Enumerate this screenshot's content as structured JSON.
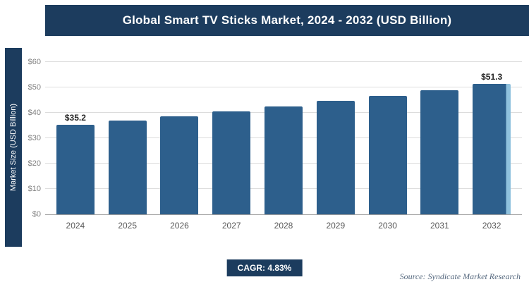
{
  "header": {
    "title": "Global Smart TV Sticks Market, 2024 - 2032 (USD Billion)"
  },
  "chart_data": {
    "type": "bar",
    "title": "Global Smart TV Sticks Market, 2024 - 2032 (USD Billion)",
    "ylabel": "Market Size (USD Billion)",
    "xlabel": "",
    "categories": [
      "2024",
      "2025",
      "2026",
      "2027",
      "2028",
      "2029",
      "2030",
      "2031",
      "2032"
    ],
    "values": [
      35.2,
      36.9,
      38.7,
      40.6,
      42.5,
      44.6,
      46.7,
      49.0,
      51.3
    ],
    "annotations": [
      "$35.2",
      "",
      "",
      "",
      "",
      "",
      "",
      "",
      "$51.3"
    ],
    "ylim": [
      0,
      60
    ],
    "yticks": [
      {
        "value": 0,
        "label": "$0"
      },
      {
        "value": 10,
        "label": "$10"
      },
      {
        "value": 20,
        "label": "$20"
      },
      {
        "value": 30,
        "label": "$30"
      },
      {
        "value": 40,
        "label": "$40"
      },
      {
        "value": 50,
        "label": "$50"
      },
      {
        "value": 60,
        "label": "$60"
      }
    ],
    "grid": "horizontal",
    "legend": "none",
    "bar_color": "#2d5f8c",
    "last_bar_highlight": "#8fc1dd"
  },
  "footer": {
    "cagr_label": "CAGR: 4.83%",
    "source": "Source: Syndicate Market Research"
  },
  "colors": {
    "navy": "#1c3c5e",
    "bar": "#2d5f8c",
    "gridline": "#dcdcdc",
    "axis_text": "#808080"
  }
}
